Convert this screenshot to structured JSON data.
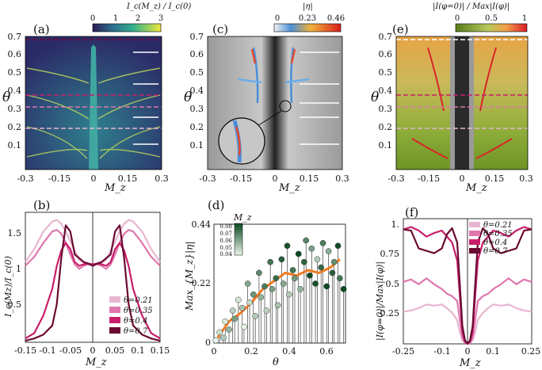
{
  "chart_data": [
    {
      "id": "a",
      "panel_label": "(a)",
      "type": "heatmap",
      "title": "I_c(M_z) / I_c(0)",
      "colorbar_ticks": [
        "0",
        "1",
        "2",
        "3"
      ],
      "xlabel": "M_z",
      "ylabel": "θ",
      "xticks": [
        "-0.3",
        "-0.15",
        "0",
        "0.15",
        "0.3"
      ],
      "yticks": [
        "0.1",
        "0.2",
        "0.3",
        "0.4",
        "0.5",
        "0.6",
        "0.7"
      ],
      "xlim": [
        -0.3,
        0.3
      ],
      "ylim": [
        0.0,
        0.7
      ],
      "marked_theta": [
        0.21,
        0.35,
        0.4,
        0.7
      ]
    },
    {
      "id": "c",
      "panel_label": "(c)",
      "type": "heatmap",
      "title": "|η|",
      "colorbar_ticks": [
        "0",
        "0.23",
        "0.46"
      ],
      "xlabel": "M_z",
      "ylabel": "θ",
      "xticks": [
        "-0.3",
        "-0.15",
        "0",
        "0.15",
        "0.3"
      ],
      "yticks": [
        "0.1",
        "0.2",
        "0.3",
        "0.4",
        "0.5",
        "0.6",
        "0.7"
      ],
      "xlim": [
        -0.3,
        0.3
      ],
      "ylim": [
        0.0,
        0.7
      ]
    },
    {
      "id": "e",
      "panel_label": "(e)",
      "type": "heatmap",
      "title": "|I(φ=0)| / Max|I(φ)|",
      "colorbar_ticks": [
        "0",
        "0.5",
        "1"
      ],
      "xlabel": "M_z",
      "ylabel": "θ",
      "xticks": [
        "-0.3",
        "-0.15",
        "0",
        "0.15",
        "0.3"
      ],
      "yticks": [
        "0.1",
        "0.2",
        "0.3",
        "0.4",
        "0.5",
        "0.6",
        "0.7"
      ],
      "xlim": [
        -0.3,
        0.3
      ],
      "ylim": [
        0.0,
        0.7
      ],
      "marked_theta": [
        0.21,
        0.35,
        0.4,
        0.7
      ]
    },
    {
      "id": "b",
      "panel_label": "(b)",
      "type": "line",
      "xlabel": "M_z",
      "ylabel": "I_c(Mz)/I_c(0)",
      "xticks": [
        "-0.15",
        "-0.1",
        "-0.05",
        "0",
        "0.05",
        "0.1",
        "0.15"
      ],
      "yticks": [
        "0.5",
        "1",
        "1.5"
      ],
      "xlim": [
        -0.15,
        0.15
      ],
      "ylim": [
        0.0,
        1.7
      ],
      "legend_position": "bottom-right",
      "x": [
        -0.15,
        -0.13,
        -0.11,
        -0.09,
        -0.08,
        -0.07,
        -0.06,
        -0.05,
        -0.04,
        -0.03,
        -0.02,
        -0.01,
        0.0,
        0.01,
        0.02,
        0.03,
        0.04,
        0.05,
        0.06,
        0.07,
        0.08,
        0.09,
        0.11,
        0.13,
        0.15
      ],
      "series": [
        {
          "name": "θ=0.21",
          "color": "#e8b6d0",
          "values": [
            1.05,
            1.22,
            1.45,
            1.58,
            1.6,
            1.55,
            1.45,
            1.32,
            1.2,
            1.08,
            1.04,
            1.02,
            1.0,
            1.02,
            1.04,
            1.08,
            1.2,
            1.32,
            1.45,
            1.55,
            1.6,
            1.58,
            1.45,
            1.22,
            1.05
          ]
        },
        {
          "name": "θ=0.35",
          "color": "#df77ad",
          "values": [
            1.0,
            1.12,
            1.3,
            1.45,
            1.47,
            1.42,
            1.3,
            1.15,
            1.02,
            0.96,
            1.0,
            1.02,
            1.02,
            1.02,
            1.0,
            0.96,
            1.02,
            1.15,
            1.3,
            1.42,
            1.47,
            1.45,
            1.3,
            1.12,
            1.0
          ]
        },
        {
          "name": "θ=0.4",
          "color": "#c81e6a",
          "values": [
            0.05,
            0.12,
            0.35,
            0.7,
            1.0,
            1.2,
            1.3,
            1.22,
            1.05,
            1.0,
            1.02,
            1.03,
            1.02,
            1.03,
            1.02,
            1.0,
            1.05,
            1.22,
            1.3,
            1.2,
            1.0,
            0.7,
            0.35,
            0.12,
            0.05
          ]
        },
        {
          "name": "θ=0.7",
          "color": "#6a0a32",
          "values": [
            0.02,
            0.05,
            0.1,
            0.22,
            0.5,
            1.1,
            1.53,
            1.45,
            1.15,
            1.1,
            1.05,
            1.03,
            1.0,
            1.03,
            1.05,
            1.1,
            1.15,
            1.45,
            1.53,
            1.1,
            0.5,
            0.22,
            0.1,
            0.05,
            0.02
          ]
        }
      ]
    },
    {
      "id": "d",
      "panel_label": "(d)",
      "type": "scatter",
      "xlabel": "θ",
      "ylabel": "Max_{M_z}|η|",
      "xticks": [
        "0",
        "0.2",
        "0.4",
        "0.6"
      ],
      "yticks": [
        "0",
        "0.22",
        "0.44"
      ],
      "xlim": [
        0.0,
        0.7
      ],
      "ylim": [
        0.0,
        0.44
      ],
      "colorbar_label": "M_z",
      "colorbar_ticks": [
        "0.08",
        "0.07",
        "0.06",
        "0.05",
        "0.04"
      ],
      "average_line": {
        "color": "#f07a20",
        "x": [
          0.02,
          0.08,
          0.14,
          0.2,
          0.26,
          0.32,
          0.38,
          0.44,
          0.5,
          0.56,
          0.62,
          0.67
        ],
        "y": [
          0.02,
          0.08,
          0.11,
          0.15,
          0.2,
          0.23,
          0.26,
          0.25,
          0.27,
          0.26,
          0.28,
          0.31
        ]
      },
      "points_x": [
        0.01,
        0.03,
        0.05,
        0.06,
        0.08,
        0.1,
        0.11,
        0.13,
        0.15,
        0.16,
        0.18,
        0.19,
        0.21,
        0.22,
        0.24,
        0.25,
        0.27,
        0.28,
        0.3,
        0.31,
        0.33,
        0.34,
        0.36,
        0.37,
        0.39,
        0.4,
        0.42,
        0.43,
        0.45,
        0.46,
        0.48,
        0.49,
        0.51,
        0.52,
        0.54,
        0.55,
        0.57,
        0.58,
        0.6,
        0.61,
        0.63,
        0.64,
        0.66,
        0.67,
        0.69
      ],
      "points_y": [
        0.01,
        0.04,
        0.02,
        0.08,
        0.05,
        0.12,
        0.09,
        0.16,
        0.13,
        0.06,
        0.22,
        0.15,
        0.18,
        0.1,
        0.26,
        0.17,
        0.21,
        0.12,
        0.3,
        0.2,
        0.24,
        0.14,
        0.31,
        0.22,
        0.36,
        0.18,
        0.27,
        0.24,
        0.33,
        0.2,
        0.3,
        0.38,
        0.25,
        0.35,
        0.22,
        0.31,
        0.28,
        0.37,
        0.21,
        0.34,
        0.26,
        0.3,
        0.36,
        0.24,
        0.2
      ],
      "points_mz": [
        0.04,
        0.045,
        0.05,
        0.042,
        0.055,
        0.048,
        0.06,
        0.044,
        0.052,
        0.04,
        0.058,
        0.046,
        0.062,
        0.05,
        0.065,
        0.055,
        0.068,
        0.048,
        0.07,
        0.06,
        0.072,
        0.052,
        0.075,
        0.058,
        0.078,
        0.05,
        0.07,
        0.062,
        0.08,
        0.055,
        0.074,
        0.066,
        0.08,
        0.06,
        0.078,
        0.05,
        0.072,
        0.068,
        0.08,
        0.057,
        0.075,
        0.064,
        0.079,
        0.07,
        0.08
      ]
    },
    {
      "id": "f",
      "panel_label": "(f)",
      "type": "line",
      "xlabel": "M_z",
      "ylabel": "|I(φ=0)|/Max|I(φ)|",
      "xticks": [
        "-0.25",
        "-0.1",
        "0",
        "0.1",
        "0.25"
      ],
      "yticks": [
        "0.25",
        "0.5",
        "0.75",
        "1."
      ],
      "xlim": [
        -0.25,
        0.25
      ],
      "ylim": [
        0.0,
        1.05
      ],
      "legend_position": "top-left",
      "x": [
        -0.25,
        -0.22,
        -0.19,
        -0.16,
        -0.13,
        -0.1,
        -0.08,
        -0.06,
        -0.04,
        -0.03,
        -0.02,
        -0.01,
        0.0,
        0.01,
        0.02,
        0.03,
        0.04,
        0.06,
        0.08,
        0.1,
        0.13,
        0.16,
        0.19,
        0.22,
        0.25
      ],
      "series": [
        {
          "name": "θ=0.21",
          "color": "#e8b6d0",
          "values": [
            0.27,
            0.28,
            0.3,
            0.33,
            0.32,
            0.33,
            0.3,
            0.26,
            0.2,
            0.1,
            0.03,
            0.01,
            0.0,
            0.01,
            0.03,
            0.1,
            0.2,
            0.26,
            0.3,
            0.33,
            0.32,
            0.33,
            0.3,
            0.28,
            0.27
          ]
        },
        {
          "name": "θ=0.35",
          "color": "#df77ad",
          "values": [
            0.52,
            0.54,
            0.5,
            0.55,
            0.5,
            0.46,
            0.42,
            0.4,
            0.36,
            0.2,
            0.05,
            0.01,
            0.0,
            0.01,
            0.05,
            0.2,
            0.36,
            0.4,
            0.42,
            0.46,
            0.5,
            0.55,
            0.5,
            0.54,
            0.52
          ]
        },
        {
          "name": "θ=0.4",
          "color": "#c81e6a",
          "values": [
            0.96,
            0.98,
            0.95,
            0.9,
            0.93,
            0.95,
            0.9,
            0.85,
            0.7,
            0.4,
            0.1,
            0.02,
            0.0,
            0.02,
            0.1,
            0.4,
            0.7,
            0.85,
            0.9,
            0.95,
            0.93,
            0.9,
            0.95,
            0.98,
            0.96
          ]
        },
        {
          "name": "θ=0.7",
          "color": "#6a0a32",
          "values": [
            0.96,
            0.95,
            0.8,
            0.78,
            0.76,
            0.8,
            0.92,
            0.97,
            0.85,
            0.5,
            0.15,
            0.03,
            0.0,
            0.03,
            0.15,
            0.5,
            0.85,
            0.97,
            0.92,
            0.8,
            0.76,
            0.78,
            0.8,
            0.95,
            0.96
          ]
        }
      ]
    }
  ]
}
